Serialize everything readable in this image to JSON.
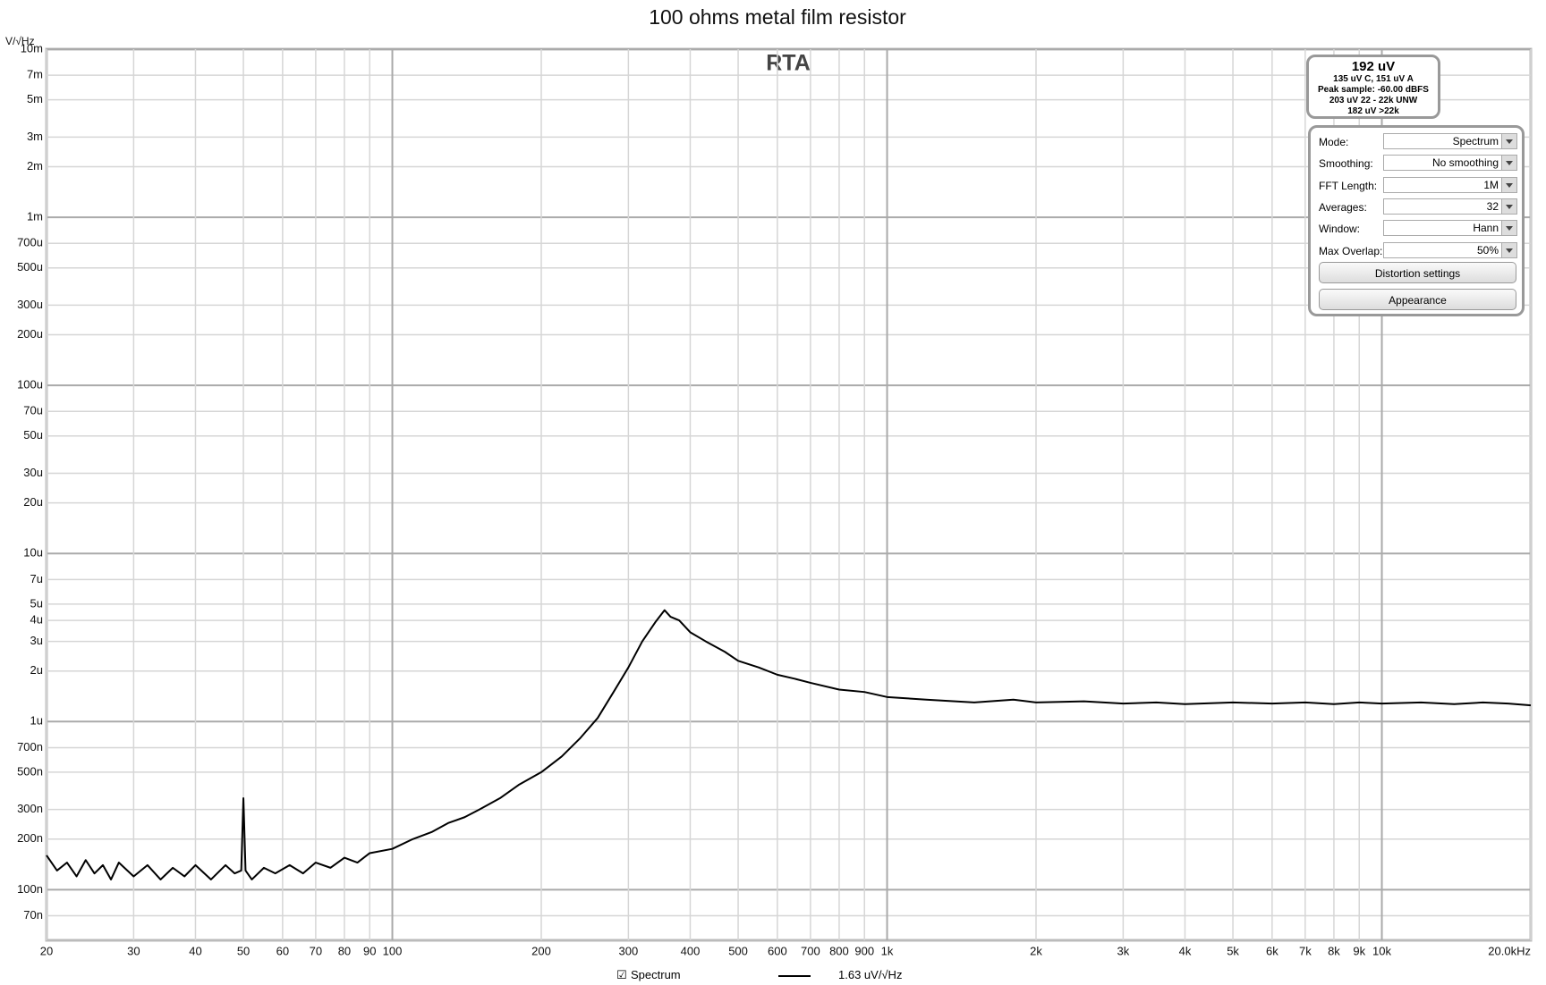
{
  "chart_data": {
    "type": "line",
    "title": "100 ohms metal film resistor",
    "subtitle": "RTA",
    "y_label": "V/√Hz",
    "xscale": "log",
    "yscale": "log",
    "grid": true,
    "xlim": [
      20,
      20000
    ],
    "ylim": [
      5e-08,
      0.01
    ],
    "xticks": [
      20,
      30,
      40,
      50,
      60,
      70,
      80,
      90,
      100,
      200,
      300,
      400,
      500,
      600,
      700,
      800,
      900,
      {
        "value": 1000,
        "label": "1k"
      },
      {
        "value": 2000,
        "label": "2k"
      },
      {
        "value": 3000,
        "label": "3k"
      },
      {
        "value": 4000,
        "label": "4k"
      },
      {
        "value": 5000,
        "label": "5k"
      },
      {
        "value": 6000,
        "label": "6k"
      },
      {
        "value": 7000,
        "label": "7k"
      },
      {
        "value": 8000,
        "label": "8k"
      },
      {
        "value": 9000,
        "label": "9k"
      },
      {
        "value": 10000,
        "label": "10k"
      },
      {
        "value": 20000,
        "label": "20.0kHz"
      }
    ],
    "yticks": [
      {
        "value": 0.01,
        "label": "10m"
      },
      {
        "value": 0.007,
        "label": "7m"
      },
      {
        "value": 0.005,
        "label": "5m"
      },
      {
        "value": 0.003,
        "label": "3m"
      },
      {
        "value": 0.002,
        "label": "2m"
      },
      {
        "value": 0.001,
        "label": "1m"
      },
      {
        "value": 0.0007,
        "label": "700u"
      },
      {
        "value": 0.0005,
        "label": "500u"
      },
      {
        "value": 0.0003,
        "label": "300u"
      },
      {
        "value": 0.0002,
        "label": "200u"
      },
      {
        "value": 0.0001,
        "label": "100u"
      },
      {
        "value": 7e-05,
        "label": "70u"
      },
      {
        "value": 5e-05,
        "label": "50u"
      },
      {
        "value": 3e-05,
        "label": "30u"
      },
      {
        "value": 2e-05,
        "label": "20u"
      },
      {
        "value": 1e-05,
        "label": "10u"
      },
      {
        "value": 7e-06,
        "label": "7u"
      },
      {
        "value": 5e-06,
        "label": "5u"
      },
      {
        "value": 4e-06,
        "label": "4u"
      },
      {
        "value": 3e-06,
        "label": "3u"
      },
      {
        "value": 2e-06,
        "label": "2u"
      },
      {
        "value": 1e-06,
        "label": "1u"
      },
      {
        "value": 7e-07,
        "label": "700n"
      },
      {
        "value": 5e-07,
        "label": "500n"
      },
      {
        "value": 3e-07,
        "label": "300n"
      },
      {
        "value": 2e-07,
        "label": "200n"
      },
      {
        "value": 1e-07,
        "label": "100n"
      },
      {
        "value": 7e-08,
        "label": "70n"
      }
    ],
    "x": [
      20,
      21,
      22,
      23,
      24,
      25,
      26,
      27,
      28,
      30,
      32,
      34,
      36,
      38,
      40,
      43,
      46,
      48,
      49.5,
      50,
      50.5,
      52,
      55,
      58,
      62,
      66,
      70,
      75,
      80,
      85,
      90,
      100,
      110,
      120,
      130,
      140,
      150,
      165,
      180,
      200,
      220,
      240,
      260,
      280,
      300,
      320,
      340,
      355,
      365,
      380,
      400,
      430,
      470,
      500,
      550,
      600,
      650,
      700,
      800,
      900,
      1000,
      1200,
      1500,
      1800,
      2000,
      2500,
      3000,
      3500,
      4000,
      5000,
      6000,
      7000,
      8000,
      9000,
      10000,
      12000,
      14000,
      16000,
      18000,
      20000
    ],
    "series": [
      {
        "name": "Spectrum",
        "color": "#000000",
        "legend_value": "1.63 uV/√Hz",
        "values": [
          1.6e-07,
          1.3e-07,
          1.45e-07,
          1.2e-07,
          1.5e-07,
          1.25e-07,
          1.4e-07,
          1.15e-07,
          1.45e-07,
          1.2e-07,
          1.4e-07,
          1.15e-07,
          1.35e-07,
          1.2e-07,
          1.4e-07,
          1.15e-07,
          1.4e-07,
          1.25e-07,
          1.3e-07,
          3.5e-07,
          1.3e-07,
          1.15e-07,
          1.35e-07,
          1.25e-07,
          1.4e-07,
          1.25e-07,
          1.45e-07,
          1.35e-07,
          1.55e-07,
          1.45e-07,
          1.65e-07,
          1.75e-07,
          2e-07,
          2.2e-07,
          2.5e-07,
          2.7e-07,
          3e-07,
          3.5e-07,
          4.2e-07,
          5e-07,
          6.2e-07,
          8e-07,
          1.05e-06,
          1.5e-06,
          2.1e-06,
          3e-06,
          3.9e-06,
          4.6e-06,
          4.2e-06,
          4e-06,
          3.4e-06,
          3e-06,
          2.6e-06,
          2.3e-06,
          2.1e-06,
          1.9e-06,
          1.8e-06,
          1.7e-06,
          1.55e-06,
          1.5e-06,
          1.4e-06,
          1.35e-06,
          1.3e-06,
          1.35e-06,
          1.3e-06,
          1.32e-06,
          1.28e-06,
          1.3e-06,
          1.27e-06,
          1.3e-06,
          1.28e-06,
          1.3e-06,
          1.27e-06,
          1.3e-06,
          1.28e-06,
          1.3e-06,
          1.27e-06,
          1.3e-06,
          1.28e-06,
          1.25e-06
        ]
      }
    ]
  },
  "info_panel": {
    "headline": "192 uV",
    "lines": [
      "135 uV C, 151 uV A",
      "Peak sample: -60.00 dBFS",
      "203 uV 22 - 22k UNW",
      "182 uV >22k"
    ]
  },
  "controls": [
    {
      "label": "Mode:",
      "value": "Spectrum"
    },
    {
      "label": "Smoothing:",
      "value": "No  smoothing"
    },
    {
      "label": "FFT Length:",
      "value": "1M"
    },
    {
      "label": "Averages:",
      "value": "32"
    },
    {
      "label": "Window:",
      "value": "Hann"
    },
    {
      "label": "Max Overlap:",
      "value": "50%"
    }
  ],
  "buttons": [
    "Distortion settings",
    "Appearance"
  ]
}
